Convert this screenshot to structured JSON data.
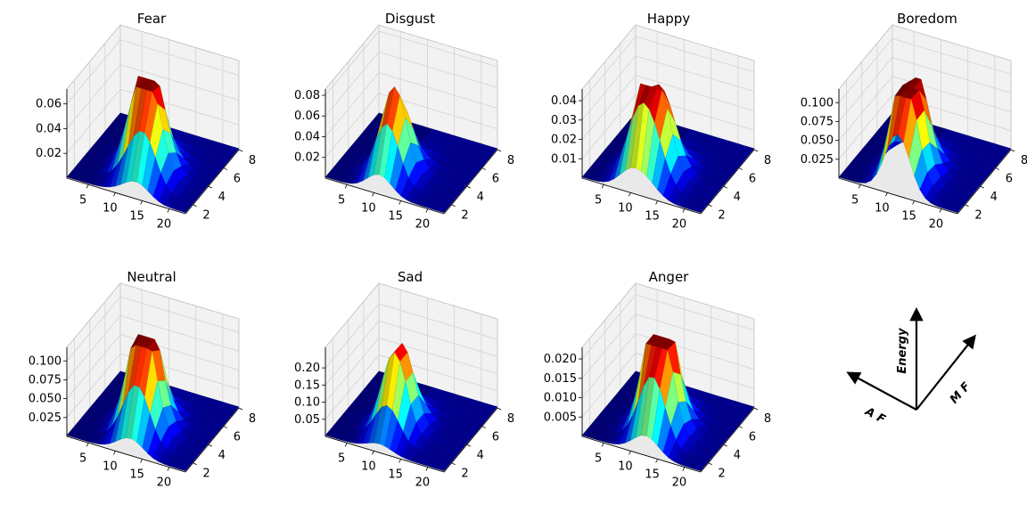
{
  "figure": {
    "tick_values": {
      "x": [
        5,
        10,
        15,
        20
      ],
      "y": [
        2,
        4,
        6,
        8
      ]
    },
    "x_range": [
      1,
      23
    ],
    "y_range": [
      1,
      8
    ]
  },
  "chart_data": [
    {
      "type": "surface3d",
      "title": "Fear",
      "zmax": 0.072,
      "zticks": [
        "0.02",
        "0.04",
        "0.06"
      ],
      "zvals": [
        0.02,
        0.04,
        0.06
      ],
      "peaks": [
        [
          11,
          4.0,
          0.07
        ],
        [
          14,
          3.0,
          0.058
        ]
      ]
    },
    {
      "type": "surface3d",
      "title": "Disgust",
      "zmax": 0.086,
      "zticks": [
        "0.02",
        "0.04",
        "0.06",
        "0.08"
      ],
      "zvals": [
        0.02,
        0.04,
        0.06,
        0.08
      ],
      "peaks": [
        [
          11,
          3.0,
          0.086
        ]
      ]
    },
    {
      "type": "surface3d",
      "title": "Happy",
      "zmax": 0.046,
      "zticks": [
        "0.01",
        "0.02",
        "0.03",
        "0.04"
      ],
      "zvals": [
        0.01,
        0.02,
        0.03,
        0.04
      ],
      "peaks": [
        [
          10,
          3.0,
          0.046
        ],
        [
          13,
          3.0,
          0.03
        ]
      ]
    },
    {
      "type": "surface3d",
      "title": "Boredom",
      "zmax": 0.118,
      "zticks": [
        "0.025",
        "0.050",
        "0.075",
        "0.100"
      ],
      "zvals": [
        0.025,
        0.05,
        0.075,
        0.1
      ],
      "peaks": [
        [
          11,
          3.5,
          0.116
        ],
        [
          12,
          2.0,
          0.105
        ]
      ]
    },
    {
      "type": "surface3d",
      "title": "Neutral",
      "zmax": 0.118,
      "zticks": [
        "0.025",
        "0.050",
        "0.075",
        "0.100"
      ],
      "zvals": [
        0.025,
        0.05,
        0.075,
        0.1
      ],
      "peaks": [
        [
          11,
          4.0,
          0.118
        ],
        [
          13,
          3.0,
          0.09
        ]
      ]
    },
    {
      "type": "surface3d",
      "title": "Sad",
      "zmax": 0.26,
      "zticks": [
        "0.05",
        "0.10",
        "0.15",
        "0.20"
      ],
      "zvals": [
        0.05,
        0.1,
        0.15,
        0.2
      ],
      "peaks": [
        [
          11,
          3.5,
          0.26
        ]
      ]
    },
    {
      "type": "surface3d",
      "title": "Anger",
      "zmax": 0.023,
      "zticks": [
        "0.005",
        "0.010",
        "0.015",
        "0.020"
      ],
      "zvals": [
        0.005,
        0.01,
        0.015,
        0.02
      ],
      "peaks": [
        [
          11,
          4.0,
          0.023
        ],
        [
          13,
          3.0,
          0.021
        ]
      ]
    }
  ],
  "legend": {
    "energy_label": "Energy",
    "mf_label": "M F",
    "af_label": "A F"
  }
}
